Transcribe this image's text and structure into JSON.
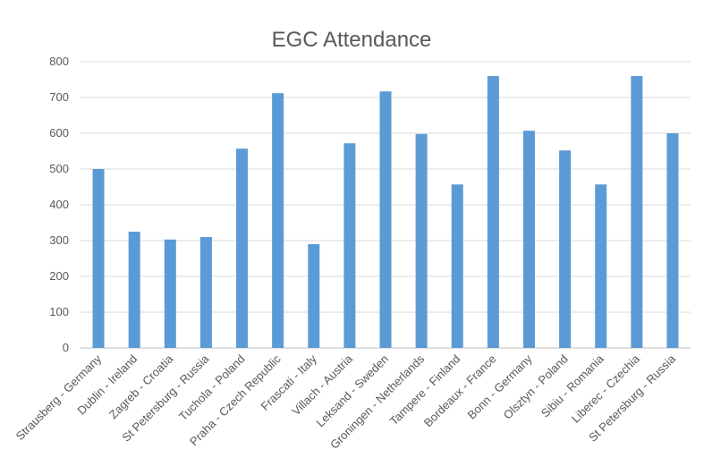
{
  "chart_data": {
    "type": "bar",
    "title": "EGC Attendance",
    "xlabel": "",
    "ylabel": "",
    "ylim": [
      0,
      800
    ],
    "yticks": [
      0,
      100,
      200,
      300,
      400,
      500,
      600,
      700,
      800
    ],
    "grid": true,
    "legend": "none",
    "bar_color": "#5b9bd5",
    "categories": [
      "Strausberg - Germany",
      "Dublin - Ireland",
      "Zagreb - Croatia",
      "St Petersburg - Russia",
      "Tuchola - Poland",
      "Praha - Czech Republic",
      "Frascati - Italy",
      "Villach - Austria",
      "Leksand - Sweden",
      "Groningen - Netherlands",
      "Tampere - Finland",
      "Bordeaux - France",
      "Bonn - Germany",
      "Olsztyn - Poland",
      "Sibiu - Romania",
      "Liberec - Czechia",
      "St Petersburg - Russia"
    ],
    "values": [
      500,
      325,
      303,
      310,
      557,
      712,
      290,
      572,
      717,
      598,
      457,
      760,
      607,
      552,
      457,
      760,
      600
    ]
  }
}
